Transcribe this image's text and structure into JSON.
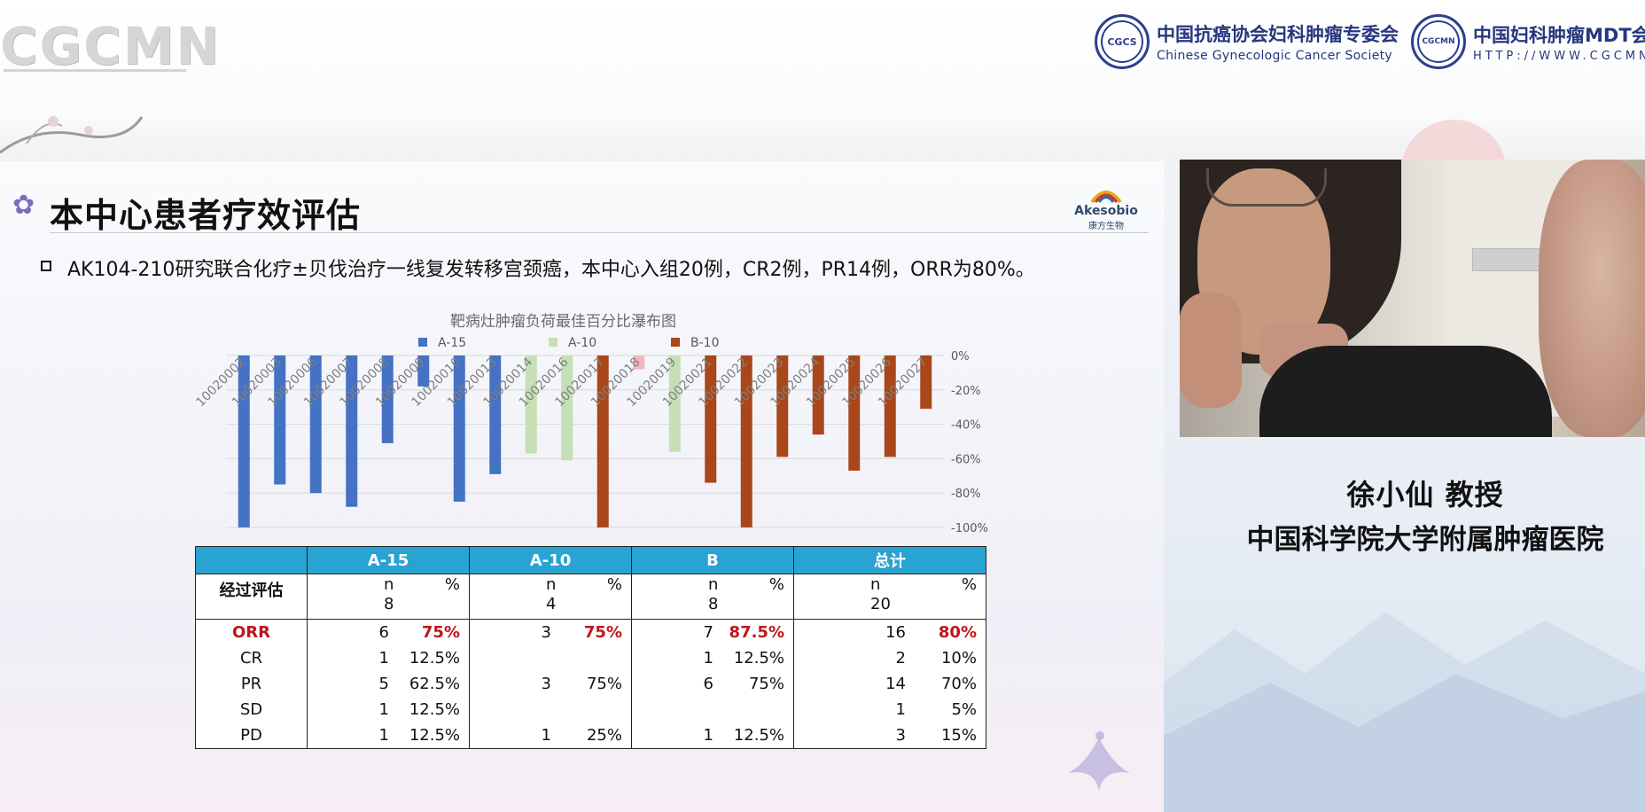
{
  "header": {
    "brand": "CGCMN",
    "org1": {
      "seal": "CGCS",
      "cn": "中国抗癌协会妇科肿瘤专委会",
      "en": "Chinese Gynecologic Cancer Society"
    },
    "org2": {
      "seal": "CGCMN",
      "cn": "中国妇科肿瘤MDT会诊平",
      "en": "HTTP://WWW.CGCMN"
    }
  },
  "slide": {
    "title": "本中心患者疗效评估",
    "logo": {
      "name": "Akesobio",
      "sub": "康方生物"
    },
    "summary": "AK104-210研究联合化疗±贝伐治疗一线复发转移宫颈癌，本中心入组20例，CR2例，PR14例，ORR为80%。"
  },
  "chart_data": {
    "type": "bar",
    "title": "靶病灶肿瘤负荷最佳百分比瀑布图",
    "legend": [
      {
        "name": "A-15",
        "color": "#4472c4"
      },
      {
        "name": "A-10",
        "color": "#c5e0b4"
      },
      {
        "name": "B-10",
        "color": "#a9471a"
      }
    ],
    "legend_placement": "top",
    "ylim": [
      -100,
      0
    ],
    "yticks": [
      "0%",
      "-20%",
      "-40%",
      "-60%",
      "-80%",
      "-100%"
    ],
    "categories": [
      "10020002",
      "10020003",
      "10020006",
      "10020007",
      "10020008",
      "10020009",
      "10020010",
      "10020013",
      "10020014",
      "10020016",
      "10020017",
      "10020018",
      "10020019",
      "10020021",
      "10020022",
      "10020023",
      "10020024",
      "10020025",
      "10020026",
      "10020027"
    ],
    "bars": [
      {
        "category": "10020002",
        "value": -100,
        "group": "A-15",
        "color": "#4472c4"
      },
      {
        "category": "10020003",
        "value": -75,
        "group": "A-15",
        "color": "#4472c4"
      },
      {
        "category": "10020006",
        "value": -80,
        "group": "A-15",
        "color": "#4472c4"
      },
      {
        "category": "10020007",
        "value": -88,
        "group": "A-15",
        "color": "#4472c4"
      },
      {
        "category": "10020008",
        "value": -51,
        "group": "A-15",
        "color": "#4472c4"
      },
      {
        "category": "10020009",
        "value": -18,
        "group": "A-15",
        "color": "#4472c4"
      },
      {
        "category": "10020010",
        "value": -85,
        "group": "A-15",
        "color": "#4472c4"
      },
      {
        "category": "10020013",
        "value": -69,
        "group": "A-15",
        "color": "#4472c4"
      },
      {
        "category": "10020014",
        "value": -57,
        "group": "A-10",
        "color": "#c5e0b4"
      },
      {
        "category": "10020016",
        "value": -61,
        "group": "A-10",
        "color": "#c5e0b4"
      },
      {
        "category": "10020017",
        "value": -100,
        "group": "B-10",
        "color": "#a9471a"
      },
      {
        "category": "10020018",
        "value": -8,
        "group": "",
        "color": "#f4b6c2"
      },
      {
        "category": "10020019",
        "value": -56,
        "group": "A-10",
        "color": "#c5e0b4"
      },
      {
        "category": "10020021",
        "value": -74,
        "group": "B-10",
        "color": "#a9471a"
      },
      {
        "category": "10020022",
        "value": -100,
        "group": "B-10",
        "color": "#a9471a"
      },
      {
        "category": "10020023",
        "value": -59,
        "group": "B-10",
        "color": "#a9471a"
      },
      {
        "category": "10020024",
        "value": -46,
        "group": "B-10",
        "color": "#a9471a"
      },
      {
        "category": "10020025",
        "value": -67,
        "group": "B-10",
        "color": "#a9471a"
      },
      {
        "category": "10020026",
        "value": -59,
        "group": "B-10",
        "color": "#a9471a"
      },
      {
        "category": "10020027",
        "value": -31,
        "group": "B-10",
        "color": "#a9471a"
      }
    ]
  },
  "table": {
    "headers": [
      "",
      "A-15",
      "A-10",
      "B",
      "总计"
    ],
    "eval_label": "经过评估",
    "n_label": "n",
    "pct_label": "%",
    "eval_counts": [
      "8",
      "4",
      "8",
      "20"
    ],
    "rows": [
      {
        "label": "ORR",
        "highlight": true,
        "cells": [
          [
            "6",
            "75%"
          ],
          [
            "3",
            "75%"
          ],
          [
            "7",
            "87.5%"
          ],
          [
            "16",
            "80%"
          ]
        ]
      },
      {
        "label": "CR",
        "highlight": false,
        "cells": [
          [
            "1",
            "12.5%"
          ],
          [
            "",
            ""
          ],
          [
            "1",
            "12.5%"
          ],
          [
            "2",
            "10%"
          ]
        ]
      },
      {
        "label": "PR",
        "highlight": false,
        "cells": [
          [
            "5",
            "62.5%"
          ],
          [
            "3",
            "75%"
          ],
          [
            "6",
            "75%"
          ],
          [
            "14",
            "70%"
          ]
        ]
      },
      {
        "label": "SD",
        "highlight": false,
        "cells": [
          [
            "1",
            "12.5%"
          ],
          [
            "",
            ""
          ],
          [
            "",
            ""
          ],
          [
            "1",
            "5%"
          ]
        ]
      },
      {
        "label": "PD",
        "highlight": false,
        "cells": [
          [
            "1",
            "12.5%"
          ],
          [
            "1",
            "25%"
          ],
          [
            "1",
            "12.5%"
          ],
          [
            "3",
            "15%"
          ]
        ]
      }
    ]
  },
  "speaker": {
    "name": "徐小仙 教授",
    "hospital": "中国科学院大学附属肿瘤医院"
  },
  "colors": {
    "table_header": "#29a3d2",
    "highlight": "#c0141c",
    "org_blue": "#26377f"
  }
}
